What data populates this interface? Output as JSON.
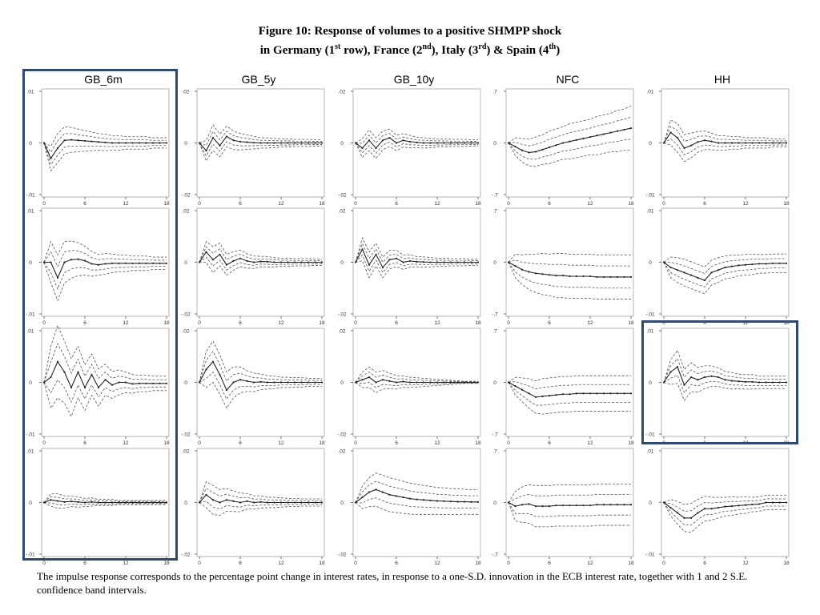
{
  "figure": {
    "title_line1": "Figure 10: Response of volumes to a positive SHMPP shock",
    "title_line2_parts": [
      "in Germany (1",
      "st",
      " row), France (2",
      "nd",
      "), Italy (3",
      "rd",
      ") & Spain (4",
      "th",
      ")"
    ],
    "caption": "The impulse response corresponds to the percentage point change in interest rates, in response to a one-S.D. innovation in the ECB interest rate, together with 1 and 2 S.E. confidence band intervals.",
    "columns": [
      "GB_6m",
      "GB_5y",
      "GB_10y",
      "NFC",
      "HH"
    ],
    "rows": [
      "Germany",
      "France",
      "Italy",
      "Spain"
    ],
    "highlight_color": "#2f4a6e",
    "highlights": [
      "column GB_6m",
      "Italy HH panel"
    ]
  },
  "chart_data": {
    "type": "line",
    "x": [
      0,
      1,
      2,
      3,
      4,
      5,
      6,
      7,
      8,
      9,
      10,
      11,
      12,
      13,
      14,
      15,
      16,
      17,
      18
    ],
    "xticks": [
      "0",
      "6",
      "12",
      "18"
    ],
    "band_style": "dashed 1 and 2 S.E. bands",
    "panels": [
      {
        "row": "Germany",
        "col": "GB_6m",
        "ylim": [
          -0.01,
          0.01
        ],
        "yticks": [
          ".01",
          "0",
          "-.01"
        ],
        "irf": [
          0,
          -0.003,
          -0.001,
          0.0005,
          0.0006,
          0.0005,
          0.0004,
          0.0003,
          0.0002,
          0.0001,
          0,
          0,
          0,
          0,
          0,
          0,
          0,
          0,
          0
        ],
        "se": [
          0,
          0.0012,
          0.0014,
          0.0013,
          0.0012,
          0.0011,
          0.001,
          0.0009,
          0.0008,
          0.0008,
          0.0007,
          0.0007,
          0.0006,
          0.0006,
          0.0006,
          0.0006,
          0.0005,
          0.0005,
          0.0005
        ]
      },
      {
        "row": "Germany",
        "col": "GB_5y",
        "ylim": [
          -0.02,
          0.02
        ],
        "yticks": [
          ".02",
          "0",
          "-.02"
        ],
        "irf": [
          0,
          -0.003,
          0.002,
          -0.001,
          0.0025,
          0.001,
          0.0005,
          0.0003,
          0.0001,
          0,
          0,
          0,
          0,
          0,
          0,
          0,
          0,
          0,
          0
        ],
        "se": [
          0,
          0.002,
          0.0025,
          0.0022,
          0.002,
          0.0018,
          0.0016,
          0.0014,
          0.0012,
          0.001,
          0.001,
          0.0009,
          0.0008,
          0.0008,
          0.0007,
          0.0007,
          0.0007,
          0.0006,
          0.0006
        ]
      },
      {
        "row": "Germany",
        "col": "GB_10y",
        "ylim": [
          -0.02,
          0.02
        ],
        "yticks": [
          ".02",
          "0",
          "-.02"
        ],
        "irf": [
          0,
          -0.002,
          0.001,
          -0.002,
          0.001,
          0.002,
          0,
          0.001,
          0.0005,
          0.0002,
          0,
          0,
          0,
          0,
          0,
          0,
          0,
          0,
          0
        ],
        "se": [
          0,
          0.0018,
          0.002,
          0.002,
          0.0018,
          0.0017,
          0.0015,
          0.0013,
          0.0012,
          0.001,
          0.001,
          0.0009,
          0.0008,
          0.0008,
          0.0007,
          0.0007,
          0.0007,
          0.0006,
          0.0006
        ]
      },
      {
        "row": "Germany",
        "col": "NFC",
        "ylim": [
          -0.7,
          0.7
        ],
        "yticks": [
          ".7",
          "0",
          "-.7"
        ],
        "irf": [
          0,
          -0.05,
          -0.1,
          -0.13,
          -0.12,
          -0.09,
          -0.06,
          -0.03,
          0,
          0.02,
          0.04,
          0.06,
          0.08,
          0.1,
          0.12,
          0.14,
          0.16,
          0.18,
          0.2
        ],
        "se": [
          0,
          0.06,
          0.08,
          0.09,
          0.1,
          0.1,
          0.11,
          0.11,
          0.11,
          0.12,
          0.12,
          0.12,
          0.12,
          0.13,
          0.13,
          0.13,
          0.14,
          0.14,
          0.15
        ]
      },
      {
        "row": "Germany",
        "col": "HH",
        "ylim": [
          -0.01,
          0.01
        ],
        "yticks": [
          ".01",
          "0",
          "-.01"
        ],
        "irf": [
          0,
          0.002,
          0.001,
          -0.001,
          -0.0005,
          0.0002,
          0.0005,
          0.0003,
          0,
          0,
          0,
          0,
          0,
          0,
          0,
          0,
          0,
          0,
          0
        ],
        "se": [
          0,
          0.0012,
          0.0014,
          0.0013,
          0.0012,
          0.001,
          0.0009,
          0.0008,
          0.0007,
          0.0007,
          0.0006,
          0.0006,
          0.0005,
          0.0005,
          0.0005,
          0.0005,
          0.0004,
          0.0004,
          0.0004
        ]
      },
      {
        "row": "France",
        "col": "GB_6m",
        "ylim": [
          -0.01,
          0.01
        ],
        "yticks": [
          ".01",
          "0",
          "-.01"
        ],
        "irf": [
          0,
          0,
          -0.003,
          0,
          0.0005,
          0.0006,
          0.0003,
          -0.0003,
          -0.0005,
          -0.0003,
          -0.0002,
          -0.0002,
          -0.0002,
          -0.0002,
          -0.0002,
          -0.0002,
          -0.0002,
          -0.0002,
          -0.0002
        ],
        "se": [
          0,
          0.002,
          0.0022,
          0.002,
          0.0018,
          0.0016,
          0.0014,
          0.0012,
          0.001,
          0.001,
          0.0009,
          0.0008,
          0.0008,
          0.0007,
          0.0007,
          0.0007,
          0.0006,
          0.0006,
          0.0006
        ]
      },
      {
        "row": "France",
        "col": "GB_5y",
        "ylim": [
          -0.02,
          0.02
        ],
        "yticks": [
          ".02",
          "0",
          "-.02"
        ],
        "irf": [
          0,
          0.004,
          0.001,
          0.003,
          -0.001,
          0.0005,
          0.0015,
          0.0005,
          0,
          0.0003,
          0.0002,
          0,
          0,
          0,
          0,
          0,
          0,
          0,
          0
        ],
        "se": [
          0,
          0.002,
          0.0025,
          0.0022,
          0.002,
          0.0018,
          0.0016,
          0.0014,
          0.0012,
          0.001,
          0.001,
          0.0009,
          0.0008,
          0.0008,
          0.0007,
          0.0007,
          0.0007,
          0.0006,
          0.0006
        ]
      },
      {
        "row": "France",
        "col": "GB_10y",
        "ylim": [
          -0.02,
          0.02
        ],
        "yticks": [
          ".02",
          "0",
          "-.02"
        ],
        "irf": [
          0,
          0.005,
          -0.001,
          0.003,
          -0.002,
          0.001,
          0.0015,
          0,
          0.0005,
          0.0002,
          0.0001,
          0,
          0,
          0,
          0,
          0,
          0,
          0,
          0
        ],
        "se": [
          0,
          0.0022,
          0.0025,
          0.0022,
          0.002,
          0.0018,
          0.0016,
          0.0014,
          0.0012,
          0.001,
          0.001,
          0.0009,
          0.0008,
          0.0008,
          0.0007,
          0.0007,
          0.0007,
          0.0006,
          0.0006
        ]
      },
      {
        "row": "France",
        "col": "NFC",
        "ylim": [
          -0.7,
          0.7
        ],
        "yticks": [
          ".7",
          "0",
          "-.7"
        ],
        "irf": [
          0,
          -0.05,
          -0.1,
          -0.13,
          -0.15,
          -0.16,
          -0.17,
          -0.18,
          -0.18,
          -0.19,
          -0.19,
          -0.19,
          -0.19,
          -0.2,
          -0.2,
          -0.2,
          -0.2,
          -0.2,
          -0.2
        ],
        "se": [
          0,
          0.08,
          0.1,
          0.12,
          0.13,
          0.14,
          0.14,
          0.15,
          0.15,
          0.15,
          0.15,
          0.15,
          0.15,
          0.15,
          0.15,
          0.15,
          0.15,
          0.15,
          0.15
        ]
      },
      {
        "row": "France",
        "col": "HH",
        "ylim": [
          -0.01,
          0.01
        ],
        "yticks": [
          ".01",
          "0",
          "-.01"
        ],
        "irf": [
          0,
          -0.001,
          -0.0015,
          -0.002,
          -0.0025,
          -0.003,
          -0.0035,
          -0.002,
          -0.0015,
          -0.001,
          -0.0008,
          -0.0006,
          -0.0005,
          -0.0004,
          -0.0003,
          -0.0003,
          -0.0002,
          -0.0002,
          -0.0002
        ],
        "se": [
          0,
          0.001,
          0.0012,
          0.0013,
          0.0013,
          0.0013,
          0.0013,
          0.0012,
          0.0012,
          0.0011,
          0.0011,
          0.001,
          0.001,
          0.001,
          0.0009,
          0.0009,
          0.0009,
          0.0009,
          0.0009
        ]
      },
      {
        "row": "Italy",
        "col": "GB_6m",
        "ylim": [
          -0.01,
          0.01
        ],
        "yticks": [
          ".01",
          "0",
          "-.01"
        ],
        "irf": [
          0,
          0.001,
          0.004,
          0.002,
          -0.001,
          0.002,
          -0.001,
          0.0015,
          -0.001,
          0.0005,
          -0.0005,
          0,
          0,
          -0.0003,
          -0.0002,
          -0.0002,
          -0.0002,
          -0.0002,
          -0.0002
        ],
        "se": [
          0,
          0.003,
          0.0035,
          0.003,
          0.0028,
          0.0025,
          0.0022,
          0.002,
          0.0018,
          0.0015,
          0.0013,
          0.0012,
          0.001,
          0.0009,
          0.0008,
          0.0008,
          0.0007,
          0.0007,
          0.0007
        ]
      },
      {
        "row": "Italy",
        "col": "GB_5y",
        "ylim": [
          -0.02,
          0.02
        ],
        "yticks": [
          ".02",
          "0",
          "-.02"
        ],
        "irf": [
          0,
          0.005,
          0.008,
          0.003,
          -0.003,
          0,
          0.001,
          0.0005,
          0,
          0.0002,
          0,
          0,
          0,
          0,
          0,
          0,
          0,
          0,
          0
        ],
        "se": [
          0,
          0.0035,
          0.004,
          0.0038,
          0.0035,
          0.003,
          0.0025,
          0.002,
          0.0018,
          0.0015,
          0.0013,
          0.0012,
          0.001,
          0.001,
          0.0009,
          0.0009,
          0.0008,
          0.0008,
          0.0008
        ]
      },
      {
        "row": "Italy",
        "col": "GB_10y",
        "ylim": [
          -0.02,
          0.02
        ],
        "yticks": [
          ".02",
          "0",
          "-.02"
        ],
        "irf": [
          0,
          0.001,
          0.002,
          0,
          0.001,
          0.0005,
          0,
          0.0003,
          0,
          0,
          0,
          0,
          0,
          0,
          0,
          0,
          0,
          0,
          0
        ],
        "se": [
          0,
          0.0015,
          0.002,
          0.002,
          0.0018,
          0.0015,
          0.0013,
          0.0011,
          0.001,
          0.0009,
          0.0008,
          0.0007,
          0.0006,
          0.0005,
          0.0004,
          0.0003,
          0.0002,
          0.0002,
          0.0002
        ]
      },
      {
        "row": "Italy",
        "col": "NFC",
        "ylim": [
          -0.7,
          0.7
        ],
        "yticks": [
          ".7",
          "0",
          "-.7"
        ],
        "irf": [
          0,
          -0.05,
          -0.1,
          -0.15,
          -0.2,
          -0.19,
          -0.18,
          -0.17,
          -0.16,
          -0.16,
          -0.15,
          -0.15,
          -0.15,
          -0.15,
          -0.15,
          -0.15,
          -0.15,
          -0.15,
          -0.15
        ],
        "se": [
          0,
          0.06,
          0.08,
          0.1,
          0.11,
          0.12,
          0.12,
          0.12,
          0.12,
          0.12,
          0.12,
          0.12,
          0.12,
          0.12,
          0.12,
          0.12,
          0.12,
          0.12,
          0.12
        ]
      },
      {
        "row": "Italy",
        "col": "HH",
        "ylim": [
          -0.01,
          0.01
        ],
        "yticks": [
          ".01",
          "0",
          "-.01"
        ],
        "irf": [
          0,
          0.002,
          0.003,
          -0.0005,
          0.001,
          0.0005,
          0.001,
          0.0012,
          0.001,
          0.0005,
          0.0003,
          0.0002,
          0.0001,
          0.0001,
          0,
          0,
          0,
          0,
          0
        ],
        "se": [
          0,
          0.0012,
          0.0016,
          0.0015,
          0.0014,
          0.0012,
          0.0011,
          0.001,
          0.0009,
          0.0008,
          0.0008,
          0.0007,
          0.0007,
          0.0007,
          0.0006,
          0.0006,
          0.0006,
          0.0006,
          0.0006
        ]
      },
      {
        "row": "Spain",
        "col": "GB_6m",
        "ylim": [
          -0.01,
          0.01
        ],
        "yticks": [
          ".01",
          "0",
          "-.01"
        ],
        "irf": [
          0,
          0.0005,
          0.0003,
          0.0001,
          0.0002,
          0.0001,
          0,
          0.0001,
          0,
          0,
          0,
          0,
          0,
          0,
          0,
          0,
          0,
          0,
          0
        ],
        "se": [
          0,
          0.0006,
          0.0007,
          0.0006,
          0.0005,
          0.0005,
          0.0004,
          0.0004,
          0.0003,
          0.0003,
          0.0003,
          0.0002,
          0.0002,
          0.0002,
          0.0002,
          0.0002,
          0.0002,
          0.0002,
          0.0002
        ]
      },
      {
        "row": "Spain",
        "col": "GB_5y",
        "ylim": [
          -0.02,
          0.02
        ],
        "yticks": [
          ".02",
          "0",
          "-.02"
        ],
        "irf": [
          0,
          0.003,
          0.001,
          0,
          0.001,
          0.0005,
          0,
          0.0005,
          0,
          0.0002,
          0,
          0,
          0,
          0,
          0,
          0,
          0,
          0,
          0
        ],
        "se": [
          0,
          0.0025,
          0.0028,
          0.0025,
          0.0022,
          0.002,
          0.0018,
          0.0015,
          0.0013,
          0.0012,
          0.001,
          0.001,
          0.0009,
          0.0008,
          0.0008,
          0.0007,
          0.0007,
          0.0007,
          0.0007
        ]
      },
      {
        "row": "Spain",
        "col": "GB_10y",
        "ylim": [
          -0.02,
          0.02
        ],
        "yticks": [
          ".02",
          "0",
          "-.02"
        ],
        "irf": [
          0,
          0.002,
          0.004,
          0.005,
          0.004,
          0.003,
          0.0025,
          0.002,
          0.0015,
          0.0012,
          0.001,
          0.0008,
          0.0006,
          0.0005,
          0.0004,
          0.0003,
          0.0003,
          0.0002,
          0.0002
        ],
        "se": [
          0,
          0.0022,
          0.0028,
          0.0032,
          0.0033,
          0.0033,
          0.0032,
          0.0031,
          0.003,
          0.0029,
          0.0028,
          0.0027,
          0.0026,
          0.0026,
          0.0025,
          0.0025,
          0.0024,
          0.0024,
          0.0024
        ]
      },
      {
        "row": "Spain",
        "col": "NFC",
        "ylim": [
          -0.7,
          0.7
        ],
        "yticks": [
          ".7",
          "0",
          "-.7"
        ],
        "irf": [
          0,
          -0.05,
          -0.03,
          -0.02,
          -0.05,
          -0.05,
          -0.05,
          -0.04,
          -0.04,
          -0.04,
          -0.04,
          -0.04,
          -0.04,
          -0.03,
          -0.03,
          -0.03,
          -0.03,
          -0.03,
          -0.03
        ],
        "se": [
          0,
          0.1,
          0.12,
          0.13,
          0.14,
          0.14,
          0.14,
          0.14,
          0.14,
          0.14,
          0.14,
          0.14,
          0.14,
          0.14,
          0.14,
          0.14,
          0.14,
          0.14,
          0.14
        ]
      },
      {
        "row": "Spain",
        "col": "HH",
        "ylim": [
          -0.01,
          0.01
        ],
        "yticks": [
          ".01",
          "0",
          "-.01"
        ],
        "irf": [
          0,
          -0.001,
          -0.002,
          -0.003,
          -0.003,
          -0.002,
          -0.0012,
          -0.0012,
          -0.001,
          -0.0008,
          -0.0007,
          -0.0006,
          -0.0005,
          -0.0004,
          -0.0003,
          0,
          0,
          0,
          0
        ],
        "se": [
          0,
          0.0008,
          0.0011,
          0.0013,
          0.0014,
          0.0013,
          0.0012,
          0.0011,
          0.001,
          0.0009,
          0.0009,
          0.0008,
          0.0008,
          0.0007,
          0.0007,
          0.0007,
          0.0007,
          0.0007,
          0.0007
        ]
      }
    ]
  }
}
